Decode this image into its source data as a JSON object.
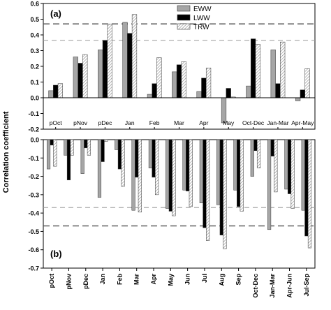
{
  "ylabel": "Correlation coefficient",
  "legend": {
    "entries": [
      {
        "name": "EWW",
        "fill": "#a6a6a6",
        "pattern": false
      },
      {
        "name": "LWW",
        "fill": "#000000",
        "pattern": false
      },
      {
        "name": "TRW",
        "fill": "#ffffff",
        "pattern": true
      }
    ]
  },
  "colors": {
    "eww": "#a6a6a6",
    "lww": "#000000",
    "trw_hatch": "#8c8c8c",
    "bar_edge": "#333333",
    "threshold_dark": "#555555",
    "threshold_light": "#999999"
  },
  "chart_data": [
    {
      "panel": "(a)",
      "type": "bar",
      "categories": [
        "pOct",
        "pNov",
        "pDec",
        "Jan",
        "Feb",
        "Mar",
        "Apr",
        "May",
        "Oct-Dec",
        "Jan-Mar",
        "Apr-May"
      ],
      "series": [
        {
          "name": "EWW",
          "values": [
            0.045,
            0.26,
            0.305,
            0.48,
            0.022,
            0.165,
            0.04,
            -0.16,
            0.075,
            0.305,
            -0.02
          ]
        },
        {
          "name": "LWW",
          "values": [
            0.08,
            0.22,
            0.365,
            0.41,
            0.09,
            0.21,
            0.125,
            0.06,
            0.375,
            0.09,
            0.05
          ]
        },
        {
          "name": "TRW",
          "values": [
            0.09,
            0.275,
            0.47,
            0.53,
            0.255,
            0.23,
            0.19,
            0.005,
            0.34,
            0.355,
            0.185
          ]
        }
      ],
      "yticks": [
        "0.6",
        "0.5",
        "0.4",
        "0.3",
        "0.2",
        "0.1",
        "0.0",
        "-0.1",
        "-0.2"
      ],
      "ytick_values": [
        0.6,
        0.5,
        0.4,
        0.3,
        0.2,
        0.1,
        0.0,
        -0.1,
        -0.2
      ],
      "ylim": [
        -0.2,
        0.6
      ],
      "thresholds": [
        {
          "value": 0.47,
          "style": "dark"
        },
        {
          "value": 0.365,
          "style": "light"
        }
      ]
    },
    {
      "panel": "(b)",
      "type": "bar",
      "categories": [
        "pOct",
        "pNov",
        "pDec",
        "Jan",
        "Feb",
        "Mar",
        "Apr",
        "May",
        "Jun",
        "Jul",
        "Aug",
        "Sep",
        "Oct-Dec",
        "Jan-Mar",
        "Apr-Jun",
        "Jul-Sep"
      ],
      "series": [
        {
          "name": "EWW",
          "values": [
            -0.16,
            -0.085,
            -0.185,
            -0.315,
            -0.055,
            -0.385,
            -0.155,
            -0.375,
            -0.275,
            -0.345,
            -0.355,
            -0.275,
            -0.2,
            -0.49,
            -0.27,
            -0.385
          ]
        },
        {
          "name": "LWW",
          "values": [
            -0.03,
            -0.22,
            -0.045,
            -0.12,
            -0.16,
            -0.205,
            -0.205,
            -0.39,
            -0.28,
            -0.48,
            -0.52,
            -0.365,
            -0.06,
            -0.09,
            -0.295,
            -0.525
          ]
        },
        {
          "name": "TRW",
          "values": [
            -0.145,
            -0.085,
            -0.085,
            -0.01,
            -0.255,
            -0.395,
            -0.3,
            -0.415,
            -0.365,
            -0.55,
            -0.595,
            -0.39,
            -0.155,
            -0.285,
            -0.375,
            -0.59
          ]
        }
      ],
      "yticks": [
        "0.0",
        "-0.1",
        "-0.2",
        "-0.3",
        "-0.4",
        "-0.5",
        "-0.6",
        "-0.7"
      ],
      "ytick_values": [
        0.0,
        -0.1,
        -0.2,
        -0.3,
        -0.4,
        -0.5,
        -0.6,
        -0.7
      ],
      "ylim": [
        -0.7,
        0.0
      ],
      "thresholds": [
        {
          "value": -0.37,
          "style": "light"
        },
        {
          "value": -0.47,
          "style": "dark"
        }
      ]
    }
  ]
}
